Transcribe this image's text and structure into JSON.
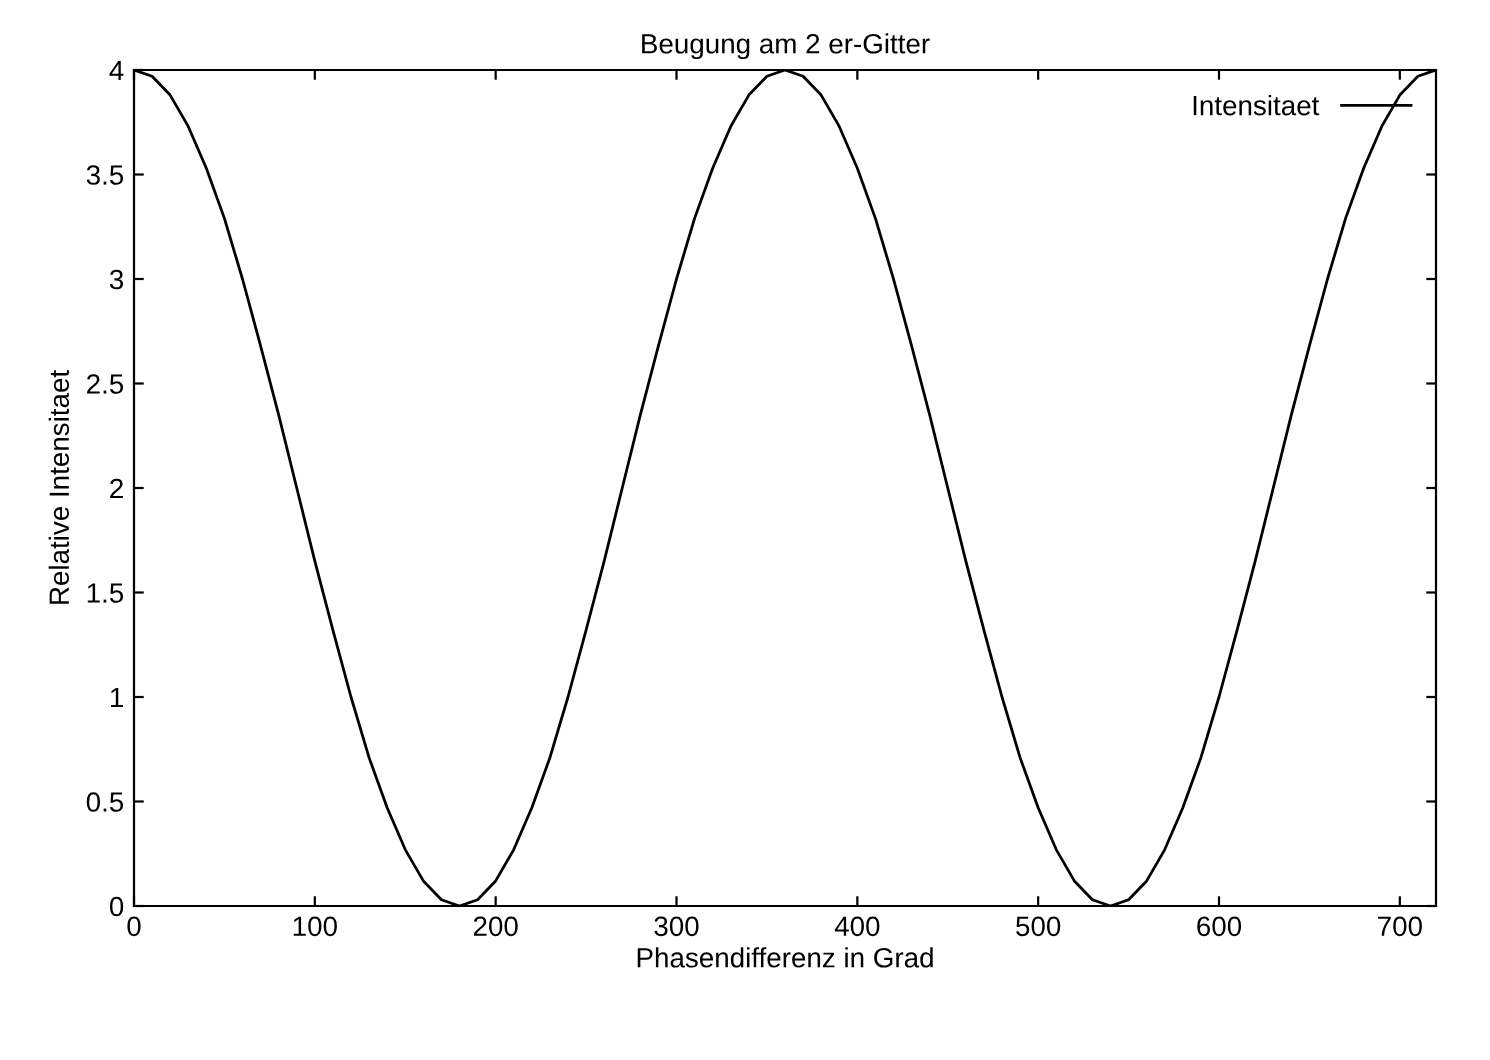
{
  "chart_data": {
    "type": "line",
    "title": "Beugung am 2 er-Gitter",
    "xlabel": "Phasendifferenz in Grad",
    "ylabel": "Relative Intensitaet",
    "xlim": [
      0,
      720
    ],
    "xticks": [
      0,
      100,
      200,
      300,
      400,
      500,
      600,
      700
    ],
    "ylim": [
      0,
      4
    ],
    "yticks": [
      0,
      0.5,
      1,
      1.5,
      2,
      2.5,
      3,
      3.5,
      4
    ],
    "grid": false,
    "legend": "top right",
    "marker": "none",
    "line_style": "solid",
    "x": [
      0,
      10,
      20,
      30,
      40,
      50,
      60,
      70,
      80,
      90,
      100,
      110,
      120,
      130,
      140,
      150,
      160,
      170,
      180,
      190,
      200,
      210,
      220,
      230,
      240,
      250,
      260,
      270,
      280,
      290,
      300,
      310,
      320,
      330,
      340,
      350,
      360,
      370,
      380,
      390,
      400,
      410,
      420,
      430,
      440,
      450,
      460,
      470,
      480,
      490,
      500,
      510,
      520,
      530,
      540,
      550,
      560,
      570,
      580,
      590,
      600,
      610,
      620,
      630,
      640,
      650,
      660,
      670,
      680,
      690,
      700,
      710,
      720
    ],
    "series": [
      {
        "name": "Intensitaet",
        "color": "#000000",
        "values": [
          4,
          3.97,
          3.88,
          3.73,
          3.53,
          3.29,
          3,
          2.68,
          2.35,
          2,
          1.65,
          1.32,
          1,
          0.71,
          0.47,
          0.27,
          0.12,
          0.03,
          0,
          0.03,
          0.12,
          0.27,
          0.47,
          0.71,
          1,
          1.32,
          1.65,
          2,
          2.35,
          2.68,
          3,
          3.29,
          3.53,
          3.73,
          3.88,
          3.97,
          4,
          3.97,
          3.88,
          3.73,
          3.53,
          3.29,
          3,
          2.68,
          2.35,
          2,
          1.65,
          1.32,
          1,
          0.71,
          0.47,
          0.27,
          0.12,
          0.03,
          0,
          0.03,
          0.12,
          0.27,
          0.47,
          0.71,
          1,
          1.32,
          1.65,
          2,
          2.35,
          2.68,
          3,
          3.29,
          3.53,
          3.73,
          3.88,
          3.97,
          4
        ]
      }
    ]
  }
}
